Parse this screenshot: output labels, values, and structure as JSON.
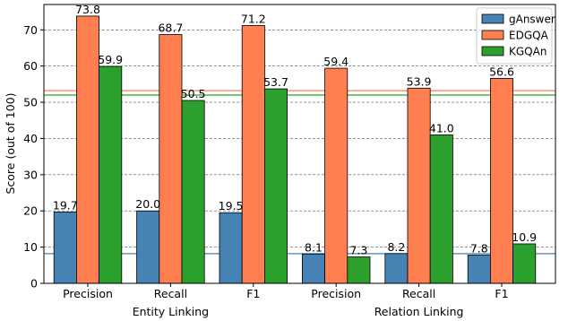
{
  "chart_data": {
    "type": "bar",
    "categories": [
      "Precision",
      "Recall",
      "F1",
      "Precision",
      "Recall",
      "F1"
    ],
    "groups": [
      {
        "label": "Entity Linking",
        "span": [
          0,
          2
        ]
      },
      {
        "label": "Relation Linking",
        "span": [
          3,
          5
        ]
      }
    ],
    "series": [
      {
        "name": "gAnswer",
        "color": "#4682b4",
        "values": [
          19.7,
          20.0,
          19.5,
          8.1,
          8.2,
          7.8
        ]
      },
      {
        "name": "EDGQA",
        "color": "#ff7f50",
        "values": [
          73.8,
          68.7,
          71.2,
          59.4,
          53.9,
          56.6
        ]
      },
      {
        "name": "KGQAn",
        "color": "#2ca02c",
        "values": [
          59.9,
          50.5,
          53.7,
          7.3,
          41.0,
          10.9
        ]
      }
    ],
    "reference_lines": [
      {
        "y": 8.2,
        "color": "#4682b4"
      },
      {
        "y": 53.2,
        "color": "#ff7f50"
      },
      {
        "y": 52.0,
        "color": "#2ca02c"
      }
    ],
    "ylabel": "Score (out of 100)",
    "ylim": [
      0,
      77
    ],
    "yticks": [
      0,
      10,
      20,
      30,
      40,
      50,
      60,
      70
    ],
    "grid": "horizontal dashed",
    "legend": "top-right"
  }
}
